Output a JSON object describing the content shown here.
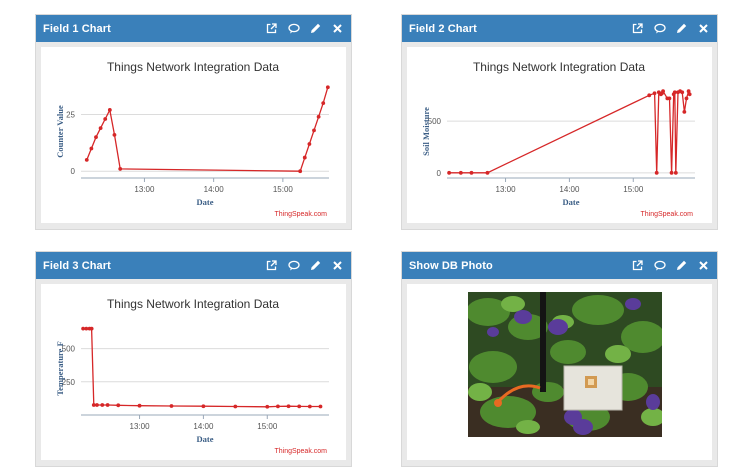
{
  "widgets": [
    {
      "id": "field1",
      "title": "Field 1 Chart"
    },
    {
      "id": "field2",
      "title": "Field 2 Chart"
    },
    {
      "id": "field3",
      "title": "Field 3 Chart"
    },
    {
      "id": "photo",
      "title": "Show DB Photo"
    }
  ],
  "toolbar_icons": [
    "external-link-icon",
    "comment-icon",
    "pencil-icon",
    "close-icon"
  ],
  "colors": {
    "header": "#3a80ba",
    "series": "#d62728",
    "credit": "#d62728",
    "axis_text": "#3a5d85"
  },
  "chart_data": [
    {
      "type": "line",
      "title": "Things Network Integration Data",
      "xlabel": "Date",
      "ylabel": "Counter Value",
      "x_ticks": [
        "13:00",
        "14:00",
        "15:00"
      ],
      "y_ticks": [
        "0",
        "25"
      ],
      "ylim": [
        -3,
        38
      ],
      "x_range": [
        "12:05",
        "15:40"
      ],
      "credit": "ThingSpeak.com",
      "series": [
        {
          "x": [
            "12:10",
            "12:14",
            "12:18",
            "12:22",
            "12:26",
            "12:30",
            "12:34",
            "12:39",
            "15:15",
            "15:19",
            "15:23",
            "15:27",
            "15:31",
            "15:35",
            "15:39"
          ],
          "y": [
            5,
            10,
            15,
            19,
            23,
            27,
            16,
            1,
            0,
            6,
            12,
            18,
            24,
            30,
            37
          ]
        }
      ]
    },
    {
      "type": "line",
      "title": "Things Network Integration Data",
      "xlabel": "Date",
      "ylabel": "Soil Moisture",
      "x_ticks": [
        "13:00",
        "14:00",
        "15:00"
      ],
      "y_ticks": [
        "0",
        "500"
      ],
      "ylim": [
        -50,
        850
      ],
      "x_range": [
        "12:05",
        "15:58"
      ],
      "credit": "ThingSpeak.com",
      "series": [
        {
          "x": [
            "12:07",
            "12:18",
            "12:28",
            "12:43",
            "15:15",
            "15:20",
            "15:22",
            "15:24",
            "15:26",
            "15:27",
            "15:28",
            "15:32",
            "15:34",
            "15:36",
            "15:38",
            "15:39",
            "15:40",
            "15:42",
            "15:44",
            "15:46",
            "15:48",
            "15:50",
            "15:52",
            "15:53"
          ],
          "y": [
            0,
            0,
            0,
            0,
            750,
            770,
            0,
            780,
            760,
            770,
            790,
            720,
            720,
            0,
            760,
            780,
            0,
            780,
            790,
            780,
            590,
            720,
            790,
            760
          ]
        }
      ]
    },
    {
      "type": "line",
      "title": "Things Network Integration Data",
      "xlabel": "Date",
      "ylabel": "Temperature F",
      "x_ticks": [
        "13:00",
        "14:00",
        "15:00"
      ],
      "y_ticks": [
        "250",
        "500"
      ],
      "ylim": [
        0,
        700
      ],
      "x_range": [
        "12:05",
        "15:58"
      ],
      "credit": "ThingSpeak.com",
      "series": [
        {
          "x": [
            "12:07",
            "12:10",
            "12:13",
            "12:15",
            "12:17",
            "12:20",
            "12:25",
            "12:30",
            "12:40",
            "13:00",
            "13:30",
            "14:00",
            "14:30",
            "15:00",
            "15:10",
            "15:20",
            "15:30",
            "15:40",
            "15:50"
          ],
          "y": [
            650,
            650,
            650,
            650,
            75,
            75,
            75,
            75,
            73,
            70,
            68,
            66,
            64,
            62,
            65,
            66,
            65,
            64,
            64
          ]
        }
      ]
    }
  ]
}
